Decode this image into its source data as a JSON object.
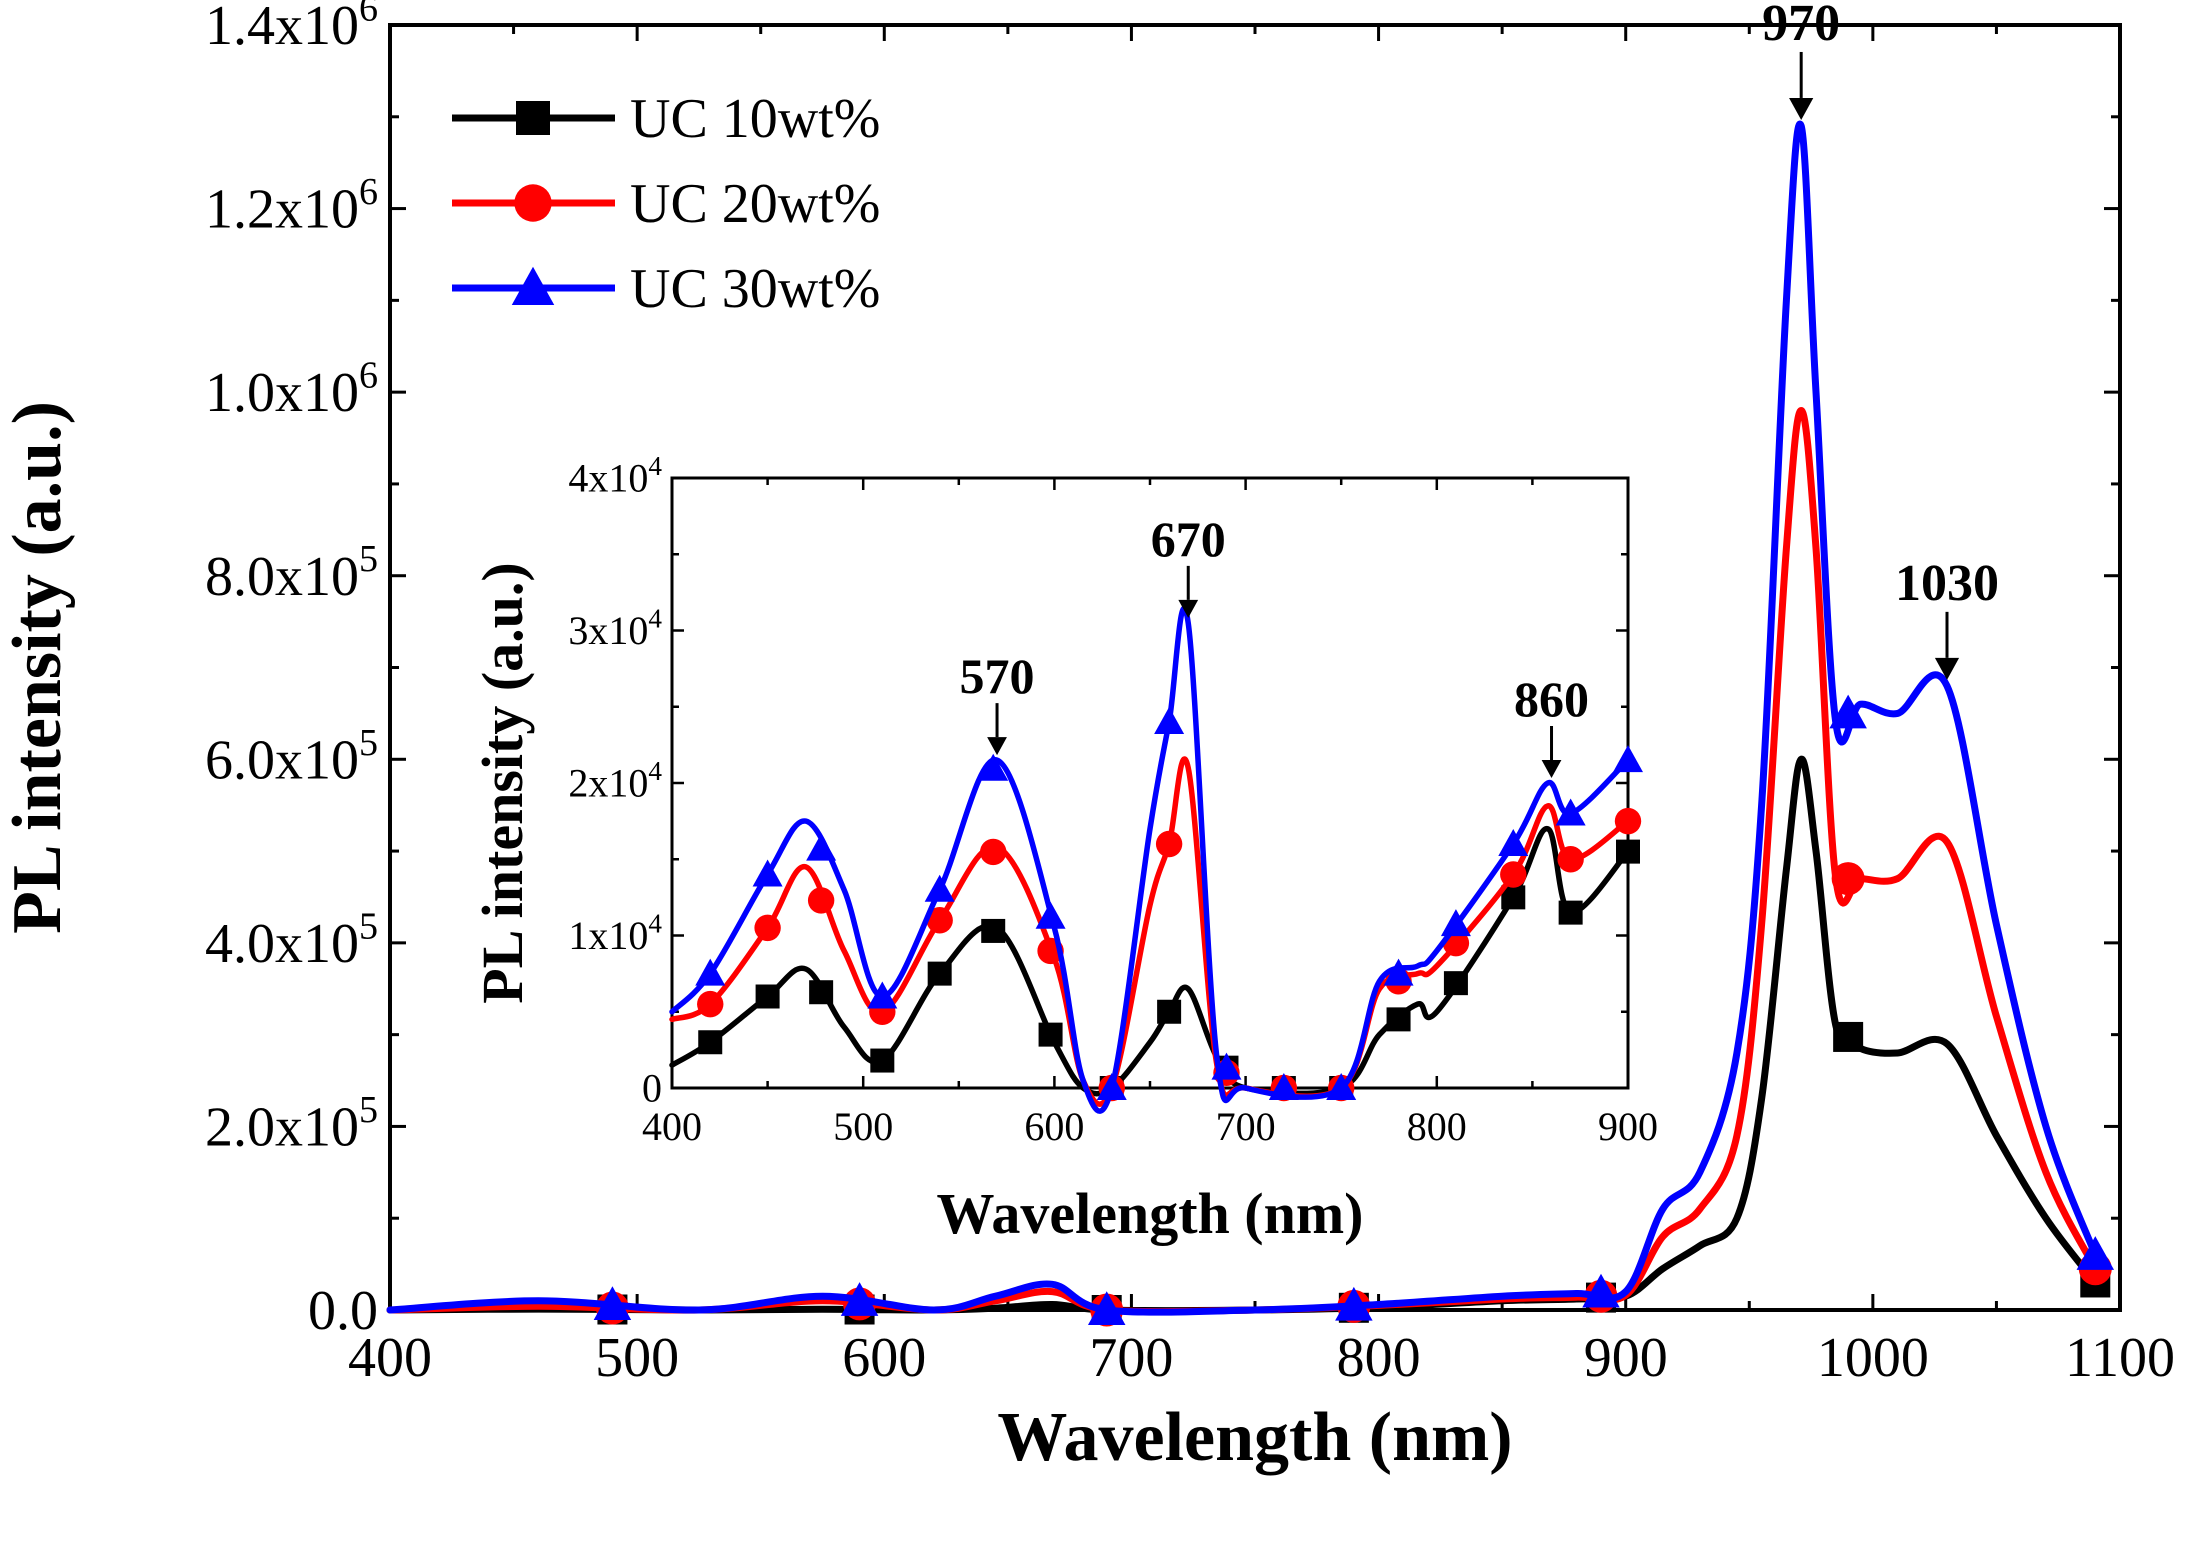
{
  "chart_data": [
    {
      "id": "main",
      "type": "line",
      "xlabel": "Wavelength (nm)",
      "ylabel": "PL intensity (a.u.)",
      "xlim": [
        400,
        1100
      ],
      "ylim": [
        0,
        1400000
      ],
      "xticks": [
        400,
        500,
        600,
        700,
        800,
        900,
        1000,
        1100
      ],
      "yticks": [
        {
          "value": 0,
          "mant": "0.0",
          "exp": ""
        },
        {
          "value": 200000,
          "mant": "2.0x10",
          "exp": "5"
        },
        {
          "value": 400000,
          "mant": "4.0x10",
          "exp": "5"
        },
        {
          "value": 600000,
          "mant": "6.0x10",
          "exp": "5"
        },
        {
          "value": 800000,
          "mant": "8.0x10",
          "exp": "5"
        },
        {
          "value": 1000000,
          "mant": "1.0x10",
          "exp": "6"
        },
        {
          "value": 1200000,
          "mant": "1.2x10",
          "exp": "6"
        },
        {
          "value": 1400000,
          "mant": "1.4x10",
          "exp": "6"
        }
      ],
      "x": [
        400,
        460,
        525,
        575,
        620,
        645,
        668,
        690,
        750,
        800,
        850,
        880,
        900,
        915,
        930,
        945,
        955,
        965,
        971,
        977,
        985,
        995,
        1010,
        1030,
        1050,
        1070,
        1090
      ],
      "series": [
        {
          "name": "UC 10wt%",
          "color": "#000000",
          "marker": "square",
          "values": [
            0,
            1000,
            0,
            800,
            0,
            2000,
            6000,
            0,
            0,
            3000,
            10000,
            12000,
            15000,
            45000,
            70000,
            100000,
            230000,
            480000,
            600000,
            500000,
            310000,
            285000,
            280000,
            290000,
            190000,
            100000,
            30000
          ]
        },
        {
          "name": "UC 20wt%",
          "color": "#ff0000",
          "marker": "circle",
          "values": [
            0,
            4000,
            0,
            10000,
            0,
            10000,
            20000,
            0,
            0,
            5000,
            12000,
            14000,
            16000,
            80000,
            110000,
            190000,
            420000,
            830000,
            980000,
            830000,
            470000,
            470000,
            470000,
            510000,
            320000,
            150000,
            45000
          ]
        },
        {
          "name": "UC 30wt%",
          "color": "#0000ff",
          "marker": "triangle",
          "values": [
            0,
            10000,
            0,
            15000,
            0,
            15000,
            28000,
            0,
            0,
            6000,
            15000,
            18000,
            20000,
            110000,
            150000,
            280000,
            550000,
            1100000,
            1290000,
            1000000,
            640000,
            660000,
            650000,
            680000,
            420000,
            200000,
            60000
          ]
        }
      ],
      "marker_x": [
        490,
        590,
        690,
        790,
        890,
        990,
        1090
      ],
      "annotations": [
        {
          "text": "970",
          "x": 971,
          "y": 1290000
        },
        {
          "text": "1030",
          "x": 1030,
          "y": 680000
        }
      ],
      "legend": {
        "position": "top-left",
        "entries": [
          "UC 10wt%",
          "UC 20wt%",
          "UC 30wt%"
        ]
      }
    },
    {
      "id": "inset",
      "type": "line",
      "xlabel": "Wavelength (nm)",
      "ylabel": "PL intensity (a.u.)",
      "xlim": [
        400,
        900
      ],
      "ylim": [
        0,
        40000
      ],
      "xticks": [
        400,
        500,
        600,
        700,
        800,
        900
      ],
      "yticks": [
        {
          "value": 0,
          "mant": "0",
          "exp": ""
        },
        {
          "value": 10000,
          "mant": "1x10",
          "exp": "4"
        },
        {
          "value": 20000,
          "mant": "2x10",
          "exp": "4"
        },
        {
          "value": 30000,
          "mant": "3x10",
          "exp": "4"
        },
        {
          "value": 40000,
          "mant": "4x10",
          "exp": "4"
        }
      ],
      "x": [
        400,
        420,
        450,
        470,
        490,
        510,
        540,
        570,
        600,
        615,
        630,
        650,
        660,
        670,
        685,
        700,
        750,
        770,
        790,
        800,
        840,
        858,
        870,
        900
      ],
      "series": [
        {
          "name": "UC 10wt%",
          "color": "#000000",
          "marker": "square",
          "values": [
            1500,
            3000,
            6000,
            7800,
            4000,
            1800,
            7500,
            10500,
            3000,
            0,
            0,
            3000,
            5000,
            6500,
            2000,
            0,
            0,
            3500,
            5500,
            5000,
            12500,
            17000,
            11500,
            15500
          ]
        },
        {
          "name": "UC 20wt%",
          "color": "#ff0000",
          "marker": "circle",
          "values": [
            4500,
            5500,
            10500,
            14500,
            9000,
            5000,
            11000,
            15800,
            8500,
            500,
            0,
            12000,
            16000,
            21000,
            1500,
            0,
            0,
            6500,
            7500,
            8000,
            14000,
            18500,
            15000,
            17500
          ]
        },
        {
          "name": "UC 30wt%",
          "color": "#0000ff",
          "marker": "triangle",
          "values": [
            5000,
            7500,
            14000,
            17500,
            13000,
            6000,
            13000,
            21500,
            10500,
            500,
            0,
            17000,
            24000,
            30500,
            2000,
            0,
            0,
            7000,
            8000,
            9000,
            16000,
            20000,
            18000,
            21500
          ]
        }
      ],
      "marker_x": [
        420,
        450,
        478,
        510,
        540,
        568,
        598,
        630,
        660,
        690,
        720,
        750,
        780,
        810,
        840,
        870,
        900
      ],
      "annotations": [
        {
          "text": "570",
          "x": 570,
          "y": 21500
        },
        {
          "text": "670",
          "x": 670,
          "y": 30500
        },
        {
          "text": "860",
          "x": 860,
          "y": 20000
        }
      ]
    }
  ]
}
